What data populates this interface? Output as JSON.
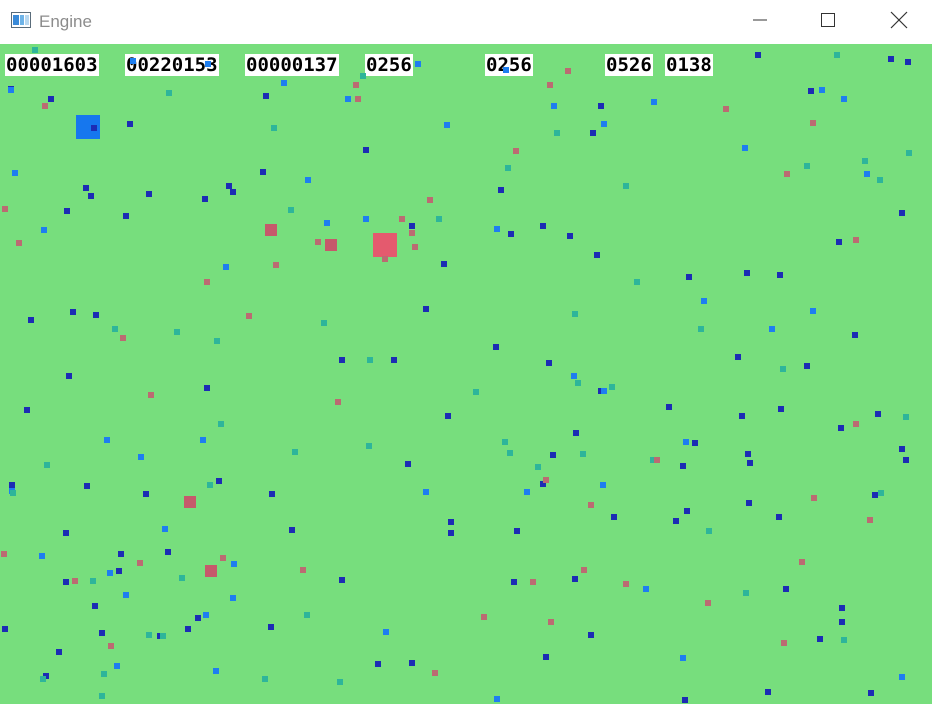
{
  "window": {
    "title": "Engine",
    "icon": "app-window-icon",
    "controls": [
      "minimize-icon",
      "maximize-icon",
      "close-icon"
    ]
  },
  "colors": {
    "field": "#77de7d",
    "player": "#1677ee",
    "enemy_large": "#e45a6e",
    "enemy": "#c6596b",
    "dot_navy": "#1c2cb4",
    "dot_blue": "#1e7ef0",
    "dot_teal": "#2eb59a",
    "dot_rose": "#bb6b72"
  },
  "hud": [
    {
      "label": "00001603"
    },
    {
      "label": "00220153"
    },
    {
      "label": "00000137"
    },
    {
      "label": "0256"
    },
    {
      "label": "0256"
    },
    {
      "label": "0526"
    },
    {
      "label": "0138"
    }
  ]
}
